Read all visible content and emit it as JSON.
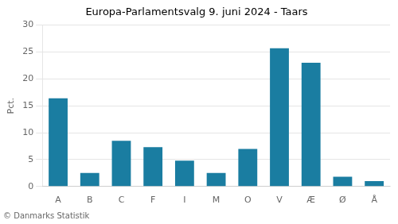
{
  "chart_data": {
    "type": "bar",
    "title": "Europa-Parlamentsvalg 9. juni 2024 - Taars",
    "categories": [
      "A",
      "B",
      "C",
      "F",
      "I",
      "M",
      "O",
      "V",
      "Æ",
      "Ø",
      "Å"
    ],
    "values": [
      16.4,
      2.5,
      8.5,
      7.3,
      4.8,
      2.5,
      7.0,
      25.7,
      23.0,
      1.8,
      1.0
    ],
    "color": "#1a7da1",
    "ylabel": "Pct.",
    "ylim": [
      0,
      30
    ],
    "yticks": [
      0,
      5,
      10,
      15,
      20,
      25,
      30
    ],
    "grid": true,
    "annotations": [
      "© Danmarks Statistik"
    ]
  }
}
